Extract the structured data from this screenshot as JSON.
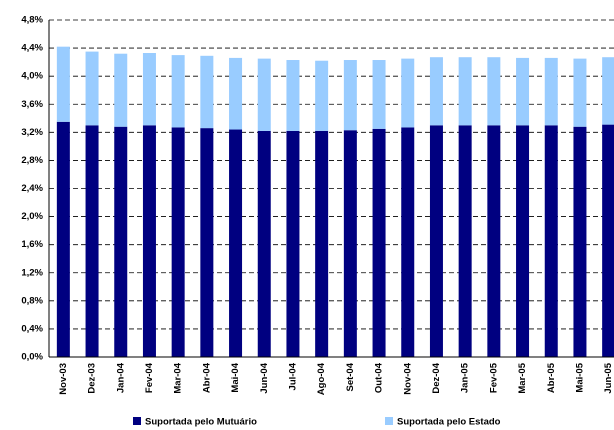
{
  "chart_data": {
    "type": "stacked_bar",
    "categories": [
      "Nov-03",
      "Dez-03",
      "Jan-04",
      "Fev-04",
      "Mar-04",
      "Abr-04",
      "Mai-04",
      "Jun-04",
      "Jul-04",
      "Ago-04",
      "Set-04",
      "Out-04",
      "Nov-04",
      "Dez-04",
      "Jan-05",
      "Fev-05",
      "Mar-05",
      "Abr-05",
      "Mai-05",
      "Jun-05"
    ],
    "series": [
      {
        "name": "Suportada pelo Mutuário",
        "color": "#000080",
        "values": [
          3.35,
          3.3,
          3.28,
          3.3,
          3.27,
          3.26,
          3.24,
          3.22,
          3.22,
          3.22,
          3.23,
          3.25,
          3.27,
          3.3,
          3.3,
          3.3,
          3.3,
          3.3,
          3.28,
          3.31
        ]
      },
      {
        "name": "Suportada pelo Estado",
        "color": "#99ccff",
        "values": [
          1.07,
          1.05,
          1.04,
          1.03,
          1.03,
          1.03,
          1.02,
          1.03,
          1.01,
          1.0,
          1.0,
          0.98,
          0.98,
          0.97,
          0.97,
          0.97,
          0.96,
          0.96,
          0.97,
          0.96
        ]
      }
    ],
    "ylim": [
      0,
      4.8
    ],
    "yticks": [
      {
        "value": 0,
        "label": "0,0%"
      },
      {
        "value": 0.4,
        "label": "0,4%"
      },
      {
        "value": 0.8,
        "label": "0,8%"
      },
      {
        "value": 1.2,
        "label": "1,2%"
      },
      {
        "value": 1.6,
        "label": "1,6%"
      },
      {
        "value": 2.0,
        "label": "2,0%"
      },
      {
        "value": 2.4,
        "label": "2,4%"
      },
      {
        "value": 2.8,
        "label": "2,8%"
      },
      {
        "value": 3.2,
        "label": "3,2%"
      },
      {
        "value": 3.6,
        "label": "3,6%"
      },
      {
        "value": 4.0,
        "label": "4,0%"
      },
      {
        "value": 4.4,
        "label": "4,4%"
      },
      {
        "value": 4.8,
        "label": "4,8%"
      }
    ],
    "grid": true,
    "legend": "bottom"
  }
}
